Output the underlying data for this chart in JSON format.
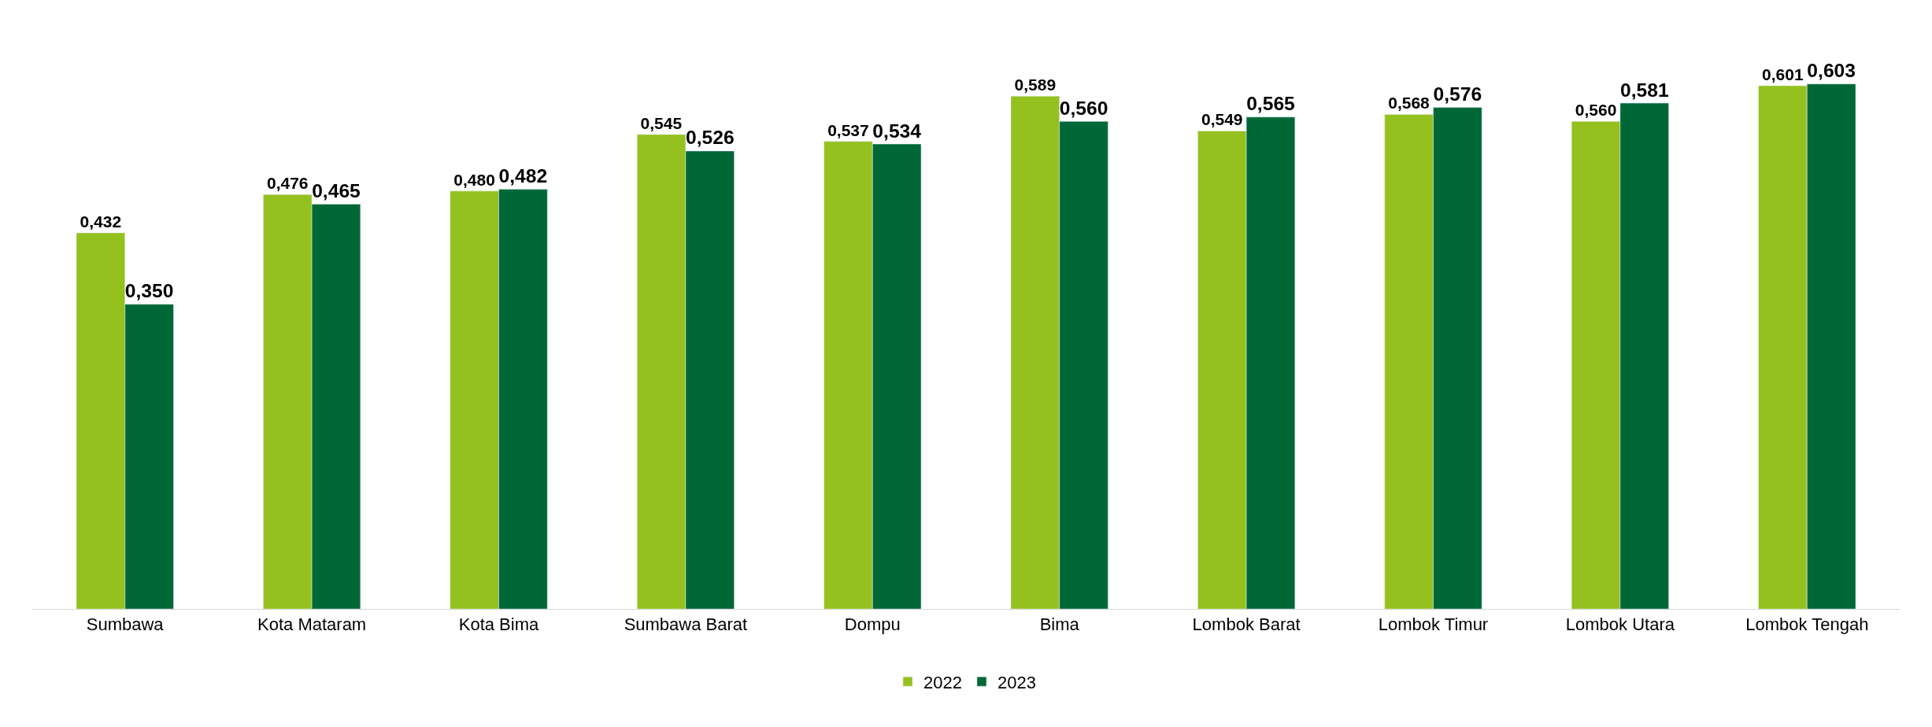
{
  "chart_data": {
    "type": "bar",
    "categories": [
      "Sumbawa",
      "Kota Mataram",
      "Kota Bima",
      "Sumbawa Barat",
      "Dompu",
      "Bima",
      "Lombok Barat",
      "Lombok Timur",
      "Lombok Utara",
      "Lombok Tengah"
    ],
    "series": [
      {
        "name": "2022",
        "color": "#95c11f",
        "values": [
          0.432,
          0.476,
          0.48,
          0.545,
          0.537,
          0.589,
          0.549,
          0.568,
          0.56,
          0.601
        ],
        "value_labels": [
          "0,432",
          "0,476",
          "0,480",
          "0,545",
          "0,537",
          "0,589",
          "0,549",
          "0,568",
          "0,560",
          "0,601"
        ]
      },
      {
        "name": "2023",
        "color": "#006837",
        "values": [
          0.35,
          0.465,
          0.482,
          0.526,
          0.534,
          0.56,
          0.565,
          0.576,
          0.581,
          0.603
        ],
        "value_labels": [
          "0,350",
          "0,465",
          "0,482",
          "0,526",
          "0,534",
          "0,560",
          "0,565",
          "0,576",
          "0,581",
          "0,603"
        ]
      }
    ],
    "legend": "bottom"
  }
}
